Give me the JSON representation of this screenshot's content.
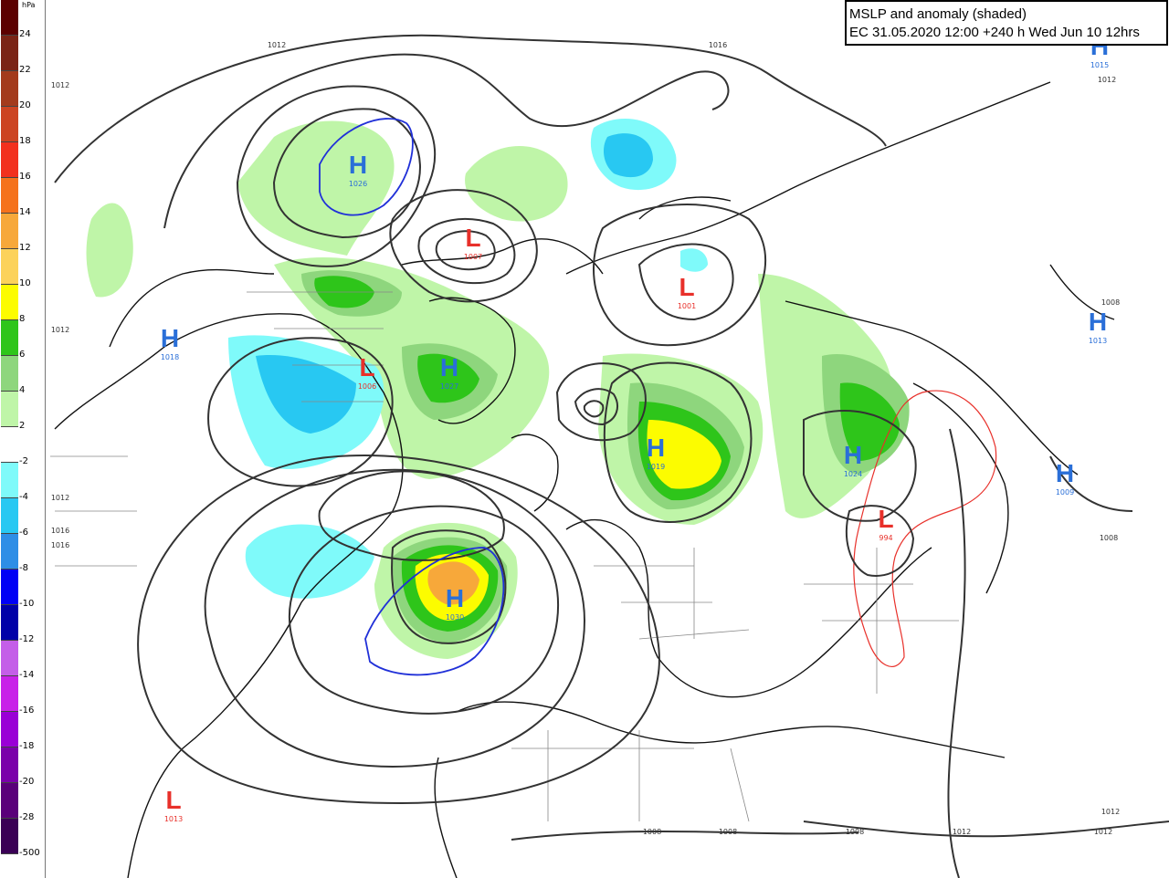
{
  "title": {
    "line1": "MSLP and anomaly (shaded)",
    "line2": "EC 31.05.2020 12:00  +240 h Wed Jun 10 12hrs"
  },
  "legend": {
    "unit": "hPa",
    "entries": [
      {
        "label": "24",
        "color": "#5c0000"
      },
      {
        "label": "22",
        "color": "#7a2416"
      },
      {
        "label": "20",
        "color": "#a33a1c"
      },
      {
        "label": "18",
        "color": "#cc4422"
      },
      {
        "label": "16",
        "color": "#f2301e"
      },
      {
        "label": "14",
        "color": "#f5721c"
      },
      {
        "label": "12",
        "color": "#f7a83a"
      },
      {
        "label": "10",
        "color": "#fcd25a"
      },
      {
        "label": "8",
        "color": "#fcfc00"
      },
      {
        "label": "6",
        "color": "#2ec51a"
      },
      {
        "label": "4",
        "color": "#8ed67d"
      },
      {
        "label": "2",
        "color": "#bff5a8"
      },
      {
        "label": "-2",
        "color": "#ffffff"
      },
      {
        "label": "-4",
        "color": "#7ffafa"
      },
      {
        "label": "-6",
        "color": "#28c8f2"
      },
      {
        "label": "-8",
        "color": "#2e8ee6"
      },
      {
        "label": "-10",
        "color": "#0000f5"
      },
      {
        "label": "-12",
        "color": "#0000a8"
      },
      {
        "label": "-14",
        "color": "#c45ee8"
      },
      {
        "label": "-16",
        "color": "#c822e8"
      },
      {
        "label": "-18",
        "color": "#9a00d6"
      },
      {
        "label": "-20",
        "color": "#7a00aa"
      },
      {
        "label": "-28",
        "color": "#5a007a"
      },
      {
        "label": "-500",
        "color": "#3a0055"
      }
    ]
  },
  "pressure_centers": [
    {
      "type": "H",
      "value": "1026"
    },
    {
      "type": "L",
      "value": "1007"
    },
    {
      "type": "L",
      "value": "1001"
    },
    {
      "type": "H",
      "value": "1015"
    },
    {
      "type": "H",
      "value": "1018"
    },
    {
      "type": "L",
      "value": "1006"
    },
    {
      "type": "H",
      "value": "1027"
    },
    {
      "type": "H",
      "value": "1019"
    },
    {
      "type": "H",
      "value": "1024"
    },
    {
      "type": "H",
      "value": "1013"
    },
    {
      "type": "L",
      "value": "994"
    },
    {
      "type": "H",
      "value": "1009"
    },
    {
      "type": "H",
      "value": "1030"
    },
    {
      "type": "L",
      "value": "1013"
    }
  ],
  "isobar_labels": [
    "1012",
    "1016",
    "1012",
    "1012",
    "1012",
    "1016",
    "1016",
    "1008",
    "1008",
    "1008",
    "1008",
    "1012",
    "1012",
    "1012",
    "1008",
    "1012"
  ],
  "colors": {
    "high": "#2a6fd8",
    "low": "#e8302a",
    "isobar": "#333333",
    "coast": "#111111",
    "border": "#777777"
  }
}
